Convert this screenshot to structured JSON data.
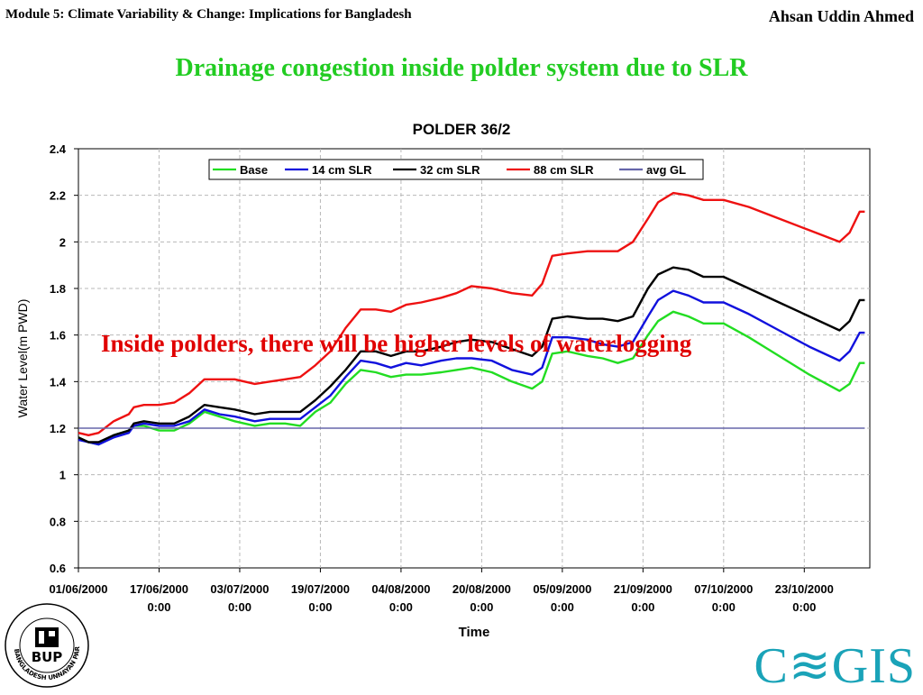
{
  "header": {
    "module": "Module 5: Climate Variability & Change: Implications for Bangladesh",
    "author": "Ahsan Uddin Ahmed"
  },
  "slide_title": "Drainage congestion inside polder system due to SLR",
  "annotation": "Inside polders, there will be higher levels of waterlogging",
  "logos": {
    "bup_text": "BUP",
    "bup_ring_text": "BANGLADESH UNNAYAN PARISHAD",
    "cegis": "C≋GIS",
    "cegis_color": "#1aa3b8"
  },
  "chart_data": {
    "type": "line",
    "title": "POLDER 36/2",
    "xlabel": "Time",
    "ylabel": "Water Level(m PWD)",
    "ylim": [
      0.6,
      2.4
    ],
    "yticks": [
      "0.6",
      "0.8",
      "1",
      "1.2",
      "1.4",
      "1.6",
      "1.8",
      "2",
      "2.2",
      "2.4"
    ],
    "xlim": [
      "2000-06-01",
      "2000-11-05"
    ],
    "xticks": [
      {
        "date": "2000-06-01",
        "l1": "01/06/2000",
        "l2": ""
      },
      {
        "date": "2000-06-17",
        "l1": "17/06/2000",
        "l2": "0:00"
      },
      {
        "date": "2000-07-03",
        "l1": "03/07/2000",
        "l2": "0:00"
      },
      {
        "date": "2000-07-19",
        "l1": "19/07/2000",
        "l2": "0:00"
      },
      {
        "date": "2000-08-04",
        "l1": "04/08/2000",
        "l2": "0:00"
      },
      {
        "date": "2000-08-20",
        "l1": "20/08/2000",
        "l2": "0:00"
      },
      {
        "date": "2000-09-05",
        "l1": "05/09/2000",
        "l2": "0:00"
      },
      {
        "date": "2000-09-21",
        "l1": "21/09/2000",
        "l2": "0:00"
      },
      {
        "date": "2000-10-07",
        "l1": "07/10/2000",
        "l2": "0:00"
      },
      {
        "date": "2000-10-23",
        "l1": "23/10/2000",
        "l2": "0:00"
      }
    ],
    "grid": true,
    "legend_position": "top",
    "series": [
      {
        "name": "Base",
        "color": "#22dd22",
        "points": [
          [
            "2000-06-01",
            1.16
          ],
          [
            "2000-06-03",
            1.14
          ],
          [
            "2000-06-05",
            1.13
          ],
          [
            "2000-06-08",
            1.17
          ],
          [
            "2000-06-11",
            1.19
          ],
          [
            "2000-06-12",
            1.21
          ],
          [
            "2000-06-14",
            1.21
          ],
          [
            "2000-06-17",
            1.19
          ],
          [
            "2000-06-20",
            1.19
          ],
          [
            "2000-06-23",
            1.22
          ],
          [
            "2000-06-26",
            1.27
          ],
          [
            "2000-06-29",
            1.25
          ],
          [
            "2000-07-02",
            1.23
          ],
          [
            "2000-07-06",
            1.21
          ],
          [
            "2000-07-09",
            1.22
          ],
          [
            "2000-07-12",
            1.22
          ],
          [
            "2000-07-15",
            1.21
          ],
          [
            "2000-07-18",
            1.27
          ],
          [
            "2000-07-21",
            1.31
          ],
          [
            "2000-07-24",
            1.39
          ],
          [
            "2000-07-27",
            1.45
          ],
          [
            "2000-07-30",
            1.44
          ],
          [
            "2000-08-02",
            1.42
          ],
          [
            "2000-08-05",
            1.43
          ],
          [
            "2000-08-08",
            1.43
          ],
          [
            "2000-08-12",
            1.44
          ],
          [
            "2000-08-15",
            1.45
          ],
          [
            "2000-08-18",
            1.46
          ],
          [
            "2000-08-22",
            1.44
          ],
          [
            "2000-08-26",
            1.4
          ],
          [
            "2000-08-30",
            1.37
          ],
          [
            "2000-09-01",
            1.4
          ],
          [
            "2000-09-03",
            1.52
          ],
          [
            "2000-09-06",
            1.53
          ],
          [
            "2000-09-10",
            1.51
          ],
          [
            "2000-09-13",
            1.5
          ],
          [
            "2000-09-16",
            1.48
          ],
          [
            "2000-09-19",
            1.5
          ],
          [
            "2000-09-22",
            1.6
          ],
          [
            "2000-09-24",
            1.66
          ],
          [
            "2000-09-27",
            1.7
          ],
          [
            "2000-09-30",
            1.68
          ],
          [
            "2000-10-03",
            1.65
          ],
          [
            "2000-10-07",
            1.65
          ],
          [
            "2000-10-12",
            1.59
          ],
          [
            "2000-10-18",
            1.51
          ],
          [
            "2000-10-24",
            1.43
          ],
          [
            "2000-10-30",
            1.36
          ],
          [
            "2000-11-01",
            1.39
          ],
          [
            "2000-11-03",
            1.48
          ],
          [
            "2000-11-04",
            1.48
          ]
        ]
      },
      {
        "name": "14 cm SLR",
        "color": "#1111dd",
        "points": [
          [
            "2000-06-01",
            1.15
          ],
          [
            "2000-06-03",
            1.14
          ],
          [
            "2000-06-05",
            1.13
          ],
          [
            "2000-06-08",
            1.16
          ],
          [
            "2000-06-11",
            1.18
          ],
          [
            "2000-06-12",
            1.21
          ],
          [
            "2000-06-14",
            1.22
          ],
          [
            "2000-06-17",
            1.21
          ],
          [
            "2000-06-20",
            1.21
          ],
          [
            "2000-06-23",
            1.23
          ],
          [
            "2000-06-26",
            1.28
          ],
          [
            "2000-06-29",
            1.26
          ],
          [
            "2000-07-02",
            1.25
          ],
          [
            "2000-07-06",
            1.23
          ],
          [
            "2000-07-09",
            1.24
          ],
          [
            "2000-07-12",
            1.24
          ],
          [
            "2000-07-15",
            1.24
          ],
          [
            "2000-07-18",
            1.29
          ],
          [
            "2000-07-21",
            1.34
          ],
          [
            "2000-07-24",
            1.42
          ],
          [
            "2000-07-27",
            1.49
          ],
          [
            "2000-07-30",
            1.48
          ],
          [
            "2000-08-02",
            1.46
          ],
          [
            "2000-08-05",
            1.48
          ],
          [
            "2000-08-08",
            1.47
          ],
          [
            "2000-08-12",
            1.49
          ],
          [
            "2000-08-15",
            1.5
          ],
          [
            "2000-08-18",
            1.5
          ],
          [
            "2000-08-22",
            1.49
          ],
          [
            "2000-08-26",
            1.45
          ],
          [
            "2000-08-30",
            1.43
          ],
          [
            "2000-09-01",
            1.46
          ],
          [
            "2000-09-03",
            1.59
          ],
          [
            "2000-09-06",
            1.59
          ],
          [
            "2000-09-10",
            1.58
          ],
          [
            "2000-09-13",
            1.56
          ],
          [
            "2000-09-16",
            1.55
          ],
          [
            "2000-09-19",
            1.57
          ],
          [
            "2000-09-22",
            1.68
          ],
          [
            "2000-09-24",
            1.75
          ],
          [
            "2000-09-27",
            1.79
          ],
          [
            "2000-09-30",
            1.77
          ],
          [
            "2000-10-03",
            1.74
          ],
          [
            "2000-10-07",
            1.74
          ],
          [
            "2000-10-12",
            1.69
          ],
          [
            "2000-10-18",
            1.62
          ],
          [
            "2000-10-24",
            1.55
          ],
          [
            "2000-10-30",
            1.49
          ],
          [
            "2000-11-01",
            1.53
          ],
          [
            "2000-11-03",
            1.61
          ],
          [
            "2000-11-04",
            1.61
          ]
        ]
      },
      {
        "name": "32 cm SLR",
        "color": "#000000",
        "points": [
          [
            "2000-06-01",
            1.16
          ],
          [
            "2000-06-03",
            1.14
          ],
          [
            "2000-06-05",
            1.14
          ],
          [
            "2000-06-08",
            1.17
          ],
          [
            "2000-06-11",
            1.19
          ],
          [
            "2000-06-12",
            1.22
          ],
          [
            "2000-06-14",
            1.23
          ],
          [
            "2000-06-17",
            1.22
          ],
          [
            "2000-06-20",
            1.22
          ],
          [
            "2000-06-23",
            1.25
          ],
          [
            "2000-06-26",
            1.3
          ],
          [
            "2000-06-29",
            1.29
          ],
          [
            "2000-07-02",
            1.28
          ],
          [
            "2000-07-06",
            1.26
          ],
          [
            "2000-07-09",
            1.27
          ],
          [
            "2000-07-12",
            1.27
          ],
          [
            "2000-07-15",
            1.27
          ],
          [
            "2000-07-18",
            1.32
          ],
          [
            "2000-07-21",
            1.38
          ],
          [
            "2000-07-24",
            1.45
          ],
          [
            "2000-07-27",
            1.53
          ],
          [
            "2000-07-30",
            1.53
          ],
          [
            "2000-08-02",
            1.51
          ],
          [
            "2000-08-05",
            1.53
          ],
          [
            "2000-08-08",
            1.53
          ],
          [
            "2000-08-12",
            1.55
          ],
          [
            "2000-08-15",
            1.57
          ],
          [
            "2000-08-18",
            1.58
          ],
          [
            "2000-08-22",
            1.57
          ],
          [
            "2000-08-26",
            1.54
          ],
          [
            "2000-08-30",
            1.51
          ],
          [
            "2000-09-01",
            1.55
          ],
          [
            "2000-09-03",
            1.67
          ],
          [
            "2000-09-06",
            1.68
          ],
          [
            "2000-09-10",
            1.67
          ],
          [
            "2000-09-13",
            1.67
          ],
          [
            "2000-09-16",
            1.66
          ],
          [
            "2000-09-19",
            1.68
          ],
          [
            "2000-09-22",
            1.8
          ],
          [
            "2000-09-24",
            1.86
          ],
          [
            "2000-09-27",
            1.89
          ],
          [
            "2000-09-30",
            1.88
          ],
          [
            "2000-10-03",
            1.85
          ],
          [
            "2000-10-07",
            1.85
          ],
          [
            "2000-10-12",
            1.8
          ],
          [
            "2000-10-18",
            1.74
          ],
          [
            "2000-10-24",
            1.68
          ],
          [
            "2000-10-30",
            1.62
          ],
          [
            "2000-11-01",
            1.66
          ],
          [
            "2000-11-03",
            1.75
          ],
          [
            "2000-11-04",
            1.75
          ]
        ]
      },
      {
        "name": "88 cm SLR",
        "color": "#ee1111",
        "points": [
          [
            "2000-06-01",
            1.18
          ],
          [
            "2000-06-03",
            1.17
          ],
          [
            "2000-06-05",
            1.18
          ],
          [
            "2000-06-08",
            1.23
          ],
          [
            "2000-06-11",
            1.26
          ],
          [
            "2000-06-12",
            1.29
          ],
          [
            "2000-06-14",
            1.3
          ],
          [
            "2000-06-17",
            1.3
          ],
          [
            "2000-06-20",
            1.31
          ],
          [
            "2000-06-23",
            1.35
          ],
          [
            "2000-06-26",
            1.41
          ],
          [
            "2000-06-29",
            1.41
          ],
          [
            "2000-07-02",
            1.41
          ],
          [
            "2000-07-06",
            1.39
          ],
          [
            "2000-07-09",
            1.4
          ],
          [
            "2000-07-12",
            1.41
          ],
          [
            "2000-07-15",
            1.42
          ],
          [
            "2000-07-18",
            1.47
          ],
          [
            "2000-07-21",
            1.53
          ],
          [
            "2000-07-24",
            1.63
          ],
          [
            "2000-07-27",
            1.71
          ],
          [
            "2000-07-30",
            1.71
          ],
          [
            "2000-08-02",
            1.7
          ],
          [
            "2000-08-05",
            1.73
          ],
          [
            "2000-08-08",
            1.74
          ],
          [
            "2000-08-12",
            1.76
          ],
          [
            "2000-08-15",
            1.78
          ],
          [
            "2000-08-18",
            1.81
          ],
          [
            "2000-08-22",
            1.8
          ],
          [
            "2000-08-26",
            1.78
          ],
          [
            "2000-08-30",
            1.77
          ],
          [
            "2000-09-01",
            1.82
          ],
          [
            "2000-09-03",
            1.94
          ],
          [
            "2000-09-06",
            1.95
          ],
          [
            "2000-09-10",
            1.96
          ],
          [
            "2000-09-13",
            1.96
          ],
          [
            "2000-09-16",
            1.96
          ],
          [
            "2000-09-19",
            2.0
          ],
          [
            "2000-09-22",
            2.1
          ],
          [
            "2000-09-24",
            2.17
          ],
          [
            "2000-09-27",
            2.21
          ],
          [
            "2000-09-30",
            2.2
          ],
          [
            "2000-10-03",
            2.18
          ],
          [
            "2000-10-07",
            2.18
          ],
          [
            "2000-10-12",
            2.15
          ],
          [
            "2000-10-18",
            2.1
          ],
          [
            "2000-10-24",
            2.05
          ],
          [
            "2000-10-30",
            2.0
          ],
          [
            "2000-11-01",
            2.04
          ],
          [
            "2000-11-03",
            2.13
          ],
          [
            "2000-11-04",
            2.13
          ]
        ]
      },
      {
        "name": "avg GL",
        "color": "#6666aa",
        "points": [
          [
            "2000-06-01",
            1.2
          ],
          [
            "2000-11-04",
            1.2
          ]
        ]
      }
    ]
  }
}
